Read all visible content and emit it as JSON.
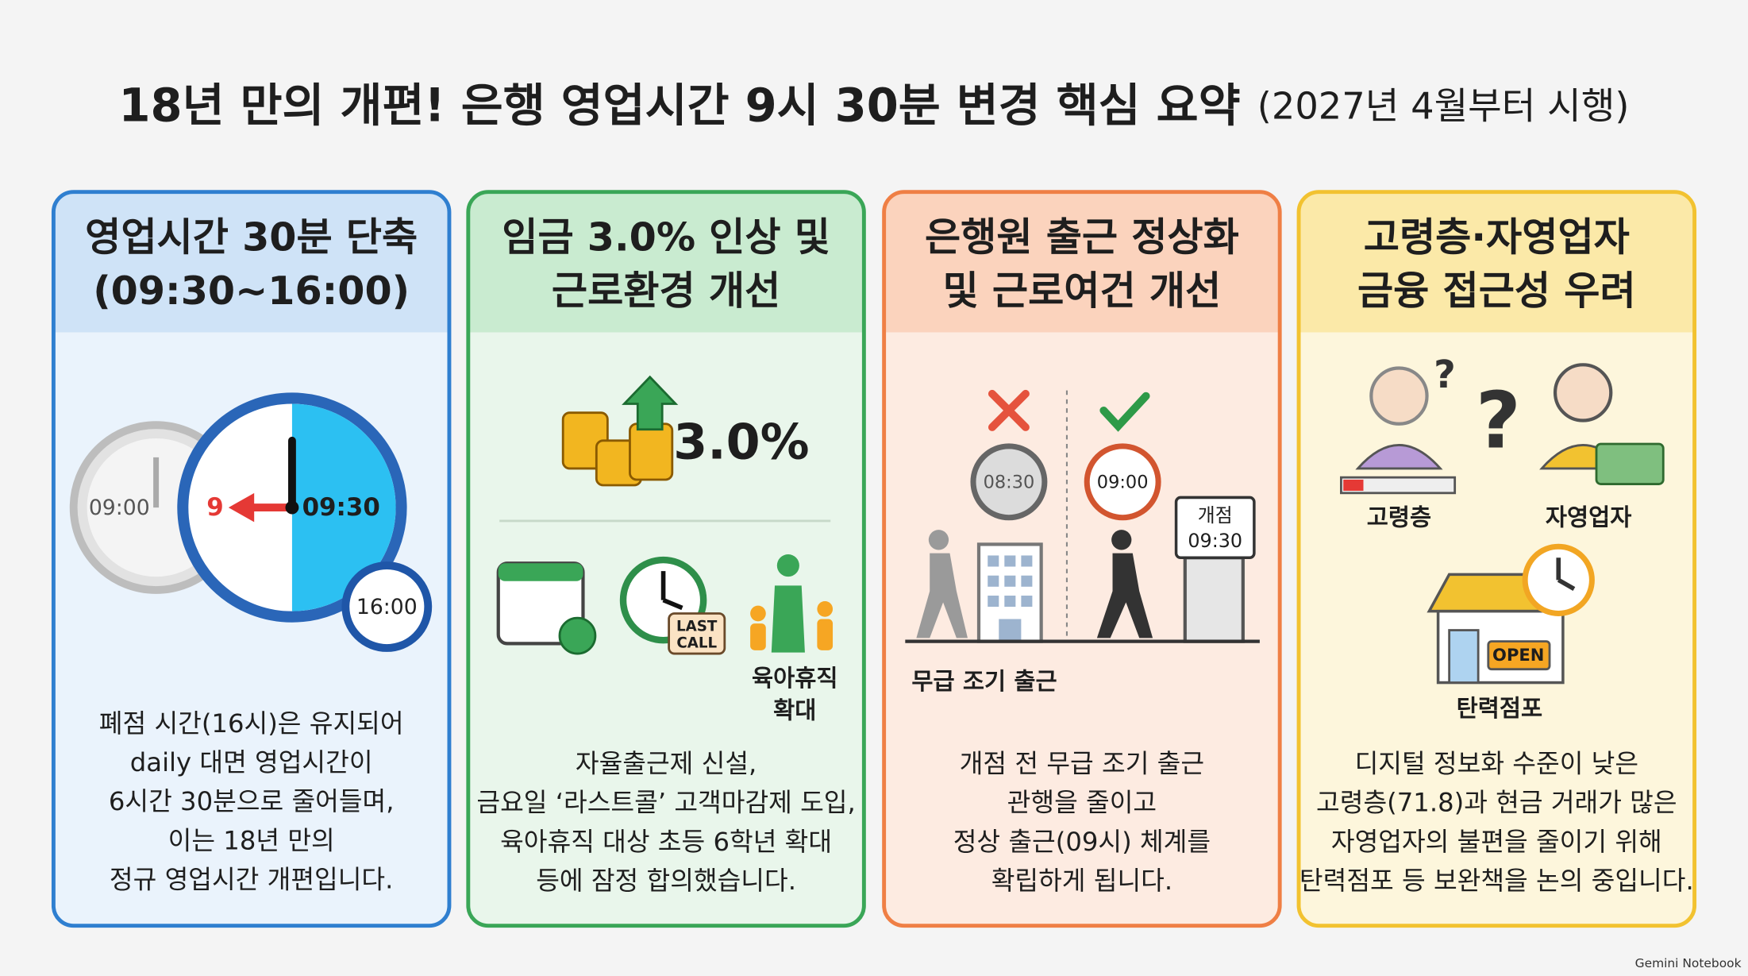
{
  "header": {
    "title": "18년 만의 개편! 은행 영업시간 9시 30분 변경 핵심 요약",
    "subtitle": "(2027년 4월부터 시행)"
  },
  "cards": [
    {
      "title": [
        "영업시간 30분 단축",
        "(09:30~16:00)"
      ],
      "labels": [
        "09:00",
        "9",
        "09:30",
        "16:00"
      ],
      "body": [
        "폐점 시간(16시)은 유지되어",
        "daily 대면 영업시간이",
        "6시간 30분으로 줄어들며,",
        "이는 18년 만의",
        "정규 영업시간 개편입니다."
      ]
    },
    {
      "title": [
        "임금 3.0% 인상 및",
        "근로환경 개선"
      ],
      "labels": [
        "3.0%",
        "LAST",
        "CALL",
        "육아휴직",
        "확대"
      ],
      "body": [
        "자율출근제 신설,",
        "금요일 ‘라스트콜’ 고객마감제 도입,",
        "육아휴직 대상 초등 6학년 확대",
        "등에 잠정 합의했습니다."
      ]
    },
    {
      "title": [
        "은행원 출근 정상화",
        "및 근로여건 개선"
      ],
      "labels": [
        "08:30",
        "09:00",
        "개점",
        "09:30",
        "무급 조기 출근"
      ],
      "body": [
        "개점 전 무급 조기 출근",
        "관행을 줄이고",
        "정상 출근(09시) 체계를",
        "확립하게 됩니다."
      ]
    },
    {
      "title": [
        "고령층·자영업자",
        "금융 접근성 우려"
      ],
      "labels": [
        "?",
        "?",
        "고령층",
        "자영업자",
        "OPEN",
        "탄력점포"
      ],
      "body": [
        "디지털 정보화 수준이 낮은",
        "고령층(71.8)과 현금 거래가 많은",
        "자영업자의 불편을 줄이기 위해",
        "탄력점포 등 보완책을 논의 중입니다."
      ]
    }
  ],
  "footer": {
    "brand": "Gemini Notebook"
  }
}
